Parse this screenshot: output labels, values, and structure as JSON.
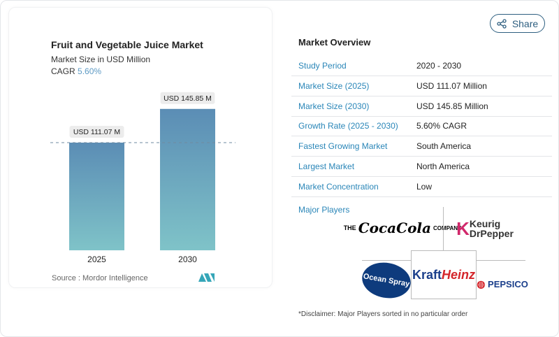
{
  "share": {
    "label": "Share",
    "icon": "share-icon"
  },
  "chart_data": {
    "type": "bar",
    "title": "Fruit and Vegetable Juice Market",
    "subtitle": "Market Size in USD Million",
    "cagr_label": "CAGR",
    "cagr_value": "5.60%",
    "categories": [
      "2025",
      "2030"
    ],
    "values": [
      111.07,
      145.85
    ],
    "data_labels": [
      "USD 111.07 M",
      "USD 145.85 M"
    ],
    "ylim": [
      0,
      150
    ],
    "source": "Source :  Mordor Intelligence",
    "colors": {
      "top": "#5b8db5",
      "bottom": "#7fc3c8"
    }
  },
  "overview": {
    "title": "Market Overview",
    "rows": [
      {
        "label": "Study Period",
        "value": "2020 - 2030"
      },
      {
        "label": "Market Size (2025)",
        "value": "USD 111.07 Million"
      },
      {
        "label": "Market Size (2030)",
        "value": "USD 145.85 Million"
      },
      {
        "label": "Growth Rate (2025 - 2030)",
        "value": "5.60% CAGR"
      },
      {
        "label": "Fastest Growing Market",
        "value": "South America"
      },
      {
        "label": "Largest Market",
        "value": "North America"
      },
      {
        "label": "Market Concentration",
        "value": "Low"
      }
    ],
    "major_players_label": "Major Players",
    "players": [
      "THE Coca-Cola COMPANY",
      "Keurig Dr Pepper",
      "Ocean Spray",
      "Kraft Heinz",
      "PEPSICO"
    ],
    "disclaimer": "*Disclaimer: Major Players sorted in no particular order"
  }
}
